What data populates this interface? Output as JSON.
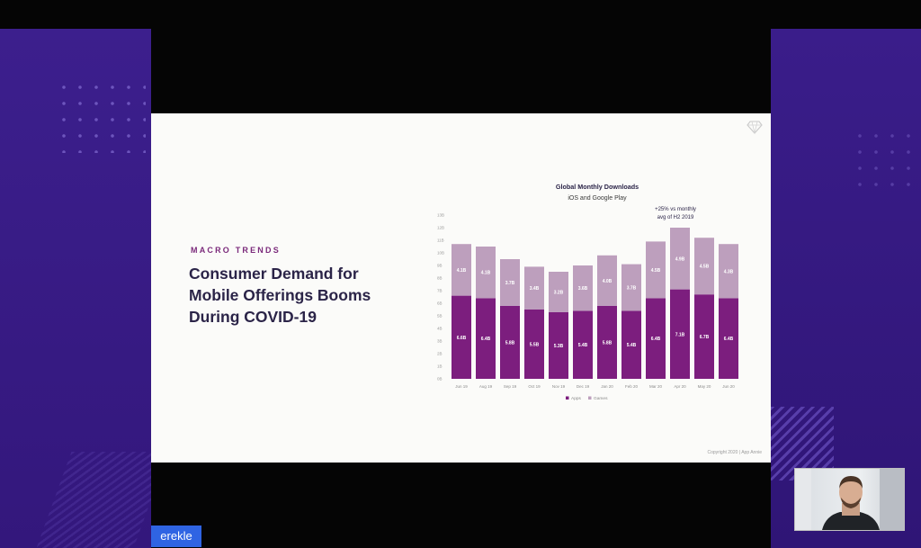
{
  "slide": {
    "eyebrow": "MACRO TRENDS",
    "headline": "Consumer Demand for Mobile Offerings Booms During COVID-19",
    "copyright": "Copyright 2020 | App Annie"
  },
  "presenter": {
    "name": "erekle"
  },
  "colors": {
    "apps": "#7c1e7e",
    "games": "#bd9fbd",
    "side_purple": "#3a1d8a",
    "headline": "#2b2448",
    "accent": "#7b2a7b",
    "nametag": "#2f64e3"
  },
  "chart_data": {
    "type": "bar",
    "stacked": true,
    "title": "Global Monthly Downloads",
    "subtitle": "iOS and Google Play",
    "annotation": "+25% vs monthly avg of H2 2019",
    "categories": [
      "Jun 19",
      "Aug 19",
      "Sep 19",
      "Oct 19",
      "Nov 19",
      "Dec 19",
      "Jan 20",
      "Feb 20",
      "Mar 20",
      "Apr 20",
      "May 20",
      "Jun 20"
    ],
    "series": [
      {
        "name": "Apps",
        "values": [
          6.6,
          6.4,
          5.8,
          5.5,
          5.3,
          5.4,
          5.8,
          5.4,
          6.4,
          7.1,
          6.7,
          6.4
        ],
        "labels": [
          "6.6B",
          "6.4B",
          "5.8B",
          "5.5B",
          "5.3B",
          "5.4B",
          "5.8B",
          "5.4B",
          "6.4B",
          "7.1B",
          "6.7B",
          "6.4B"
        ]
      },
      {
        "name": "Games",
        "values": [
          4.1,
          4.1,
          3.7,
          3.4,
          3.2,
          3.6,
          4.0,
          3.7,
          4.5,
          4.9,
          4.5,
          4.3
        ],
        "labels": [
          "4.1B",
          "4.1B",
          "3.7B",
          "3.4B",
          "3.2B",
          "3.6B",
          "4.0B",
          "3.7B",
          "4.5B",
          "4.9B",
          "4.5B",
          "4.3B"
        ]
      }
    ],
    "yticks": [
      "13B",
      "12B",
      "11B",
      "10B",
      "9B",
      "8B",
      "7B",
      "6B",
      "5B",
      "4B",
      "3B",
      "2B",
      "1B",
      "0B"
    ],
    "ylim": [
      0,
      13
    ],
    "legend_position": "bottom",
    "grid": false
  }
}
